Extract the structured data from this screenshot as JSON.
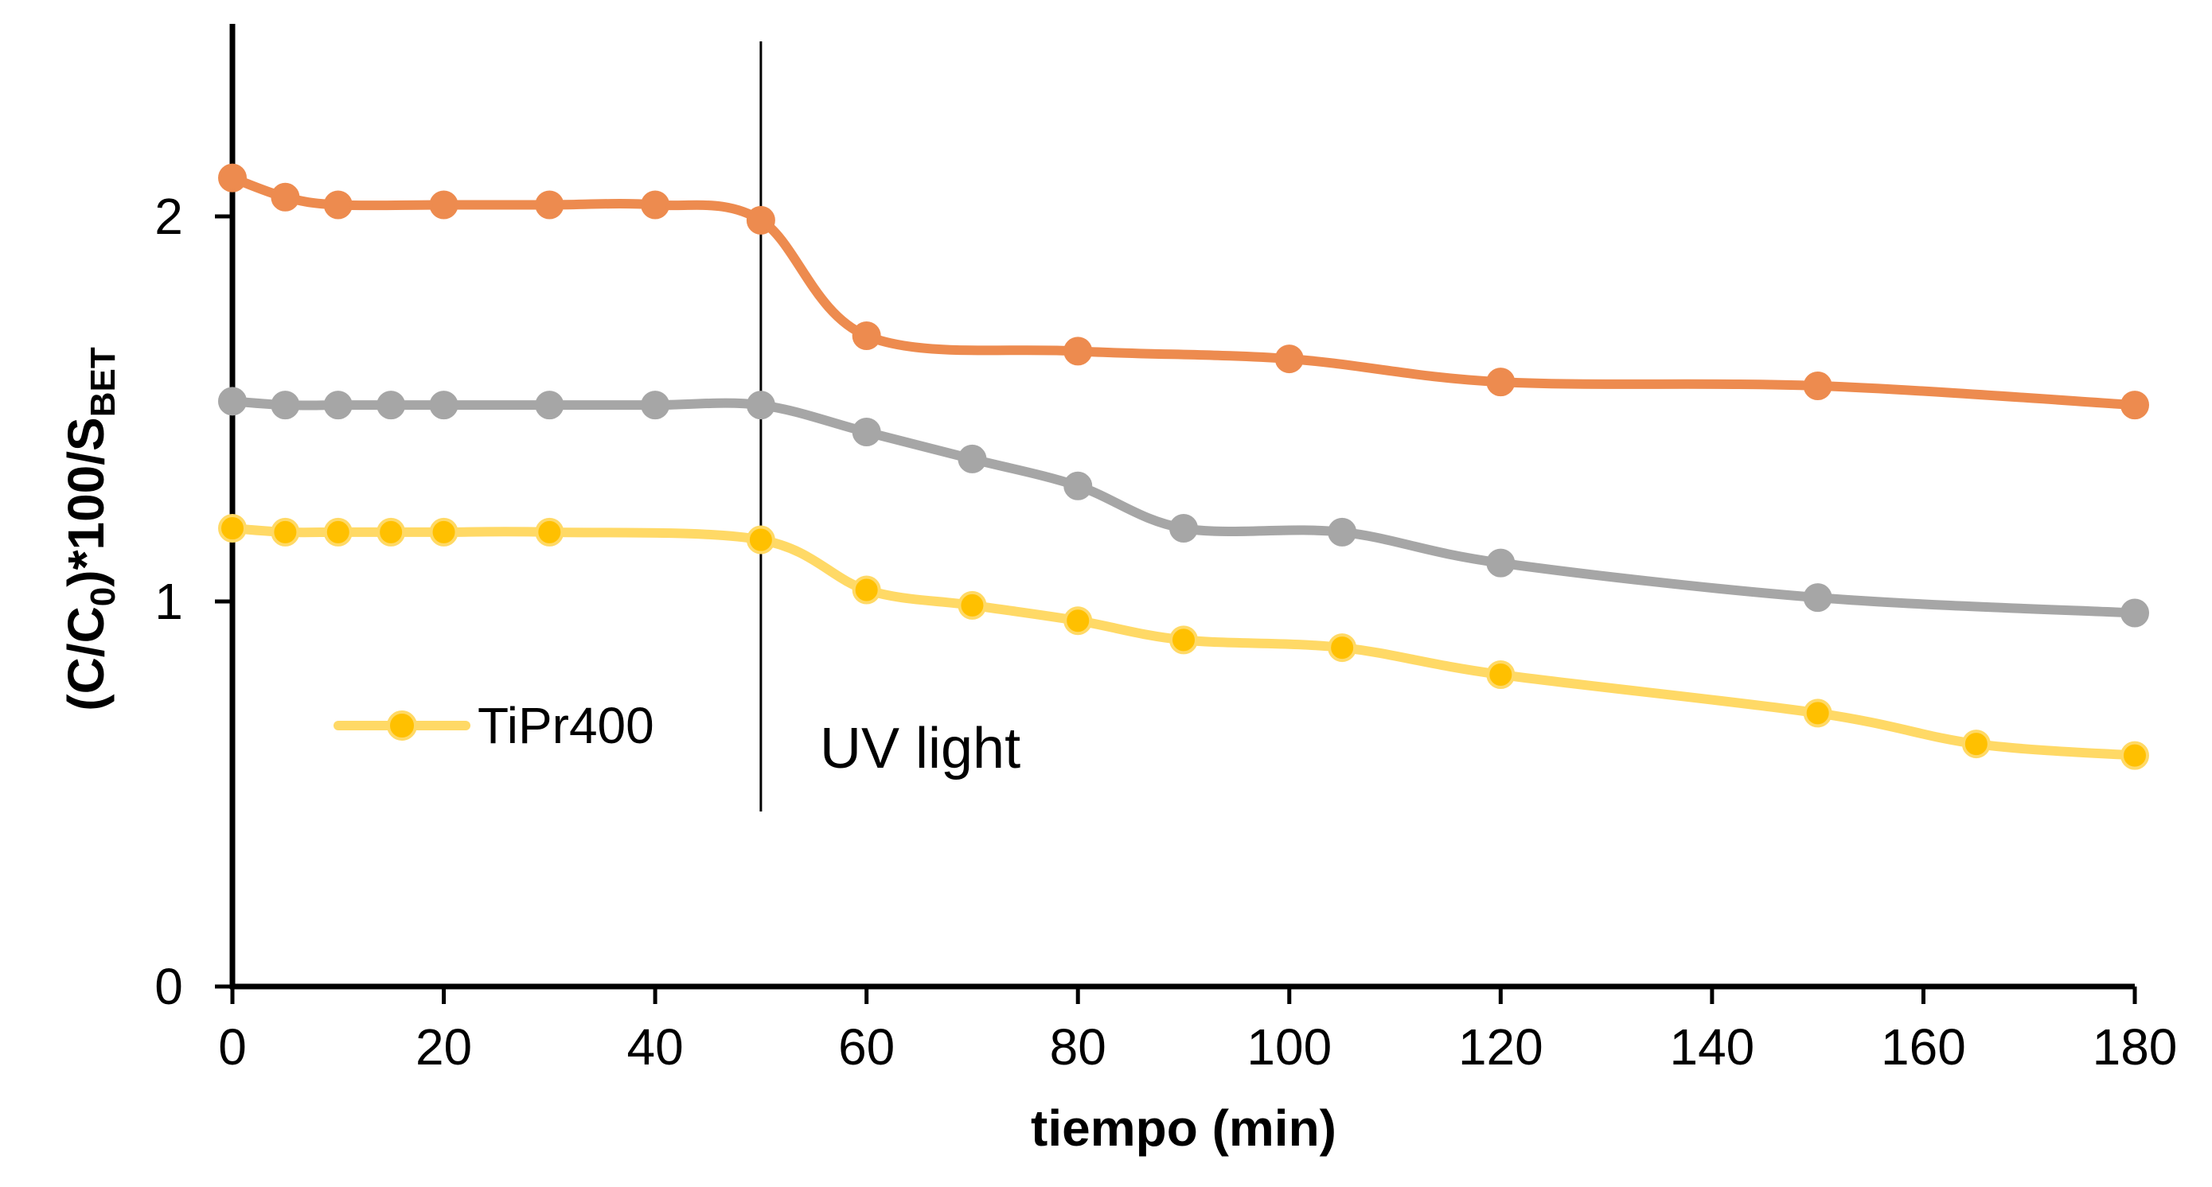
{
  "chart_data": {
    "type": "line",
    "title": "",
    "xlabel": "tiempo (min)",
    "ylabel": {
      "prefix": "(C/C",
      "sub0": "0",
      "middle": ")*100/S",
      "sub1": "BET"
    },
    "xlim": [
      0,
      180
    ],
    "ylim": [
      0,
      2.5
    ],
    "xticks": [
      "0",
      "20",
      "40",
      "60",
      "80",
      "100",
      "120",
      "140",
      "160",
      "180"
    ],
    "xtick_values": [
      0,
      20,
      40,
      60,
      80,
      100,
      120,
      140,
      160,
      180
    ],
    "yticks": [
      "0",
      "1",
      "2"
    ],
    "ytick_values": [
      0,
      1,
      2
    ],
    "grid": false,
    "legend_placement": "lower-left",
    "annotation": {
      "text": "UV light",
      "x": 50
    },
    "series": [
      {
        "name": "",
        "color": "#ED8B4F",
        "line_color": "#ED8B4F",
        "x": [
          0,
          5,
          10,
          20,
          30,
          40,
          50,
          60,
          80,
          100,
          120,
          150,
          180
        ],
        "y": [
          2.1,
          2.05,
          2.03,
          2.03,
          2.03,
          2.03,
          1.99,
          1.69,
          1.65,
          1.63,
          1.57,
          1.56,
          1.51
        ],
        "show_in_legend": false
      },
      {
        "name": "",
        "color": "#A6A6A6",
        "line_color": "#A6A6A6",
        "x": [
          0,
          5,
          10,
          15,
          20,
          30,
          40,
          50,
          60,
          70,
          80,
          90,
          105,
          120,
          150,
          180
        ],
        "y": [
          1.52,
          1.51,
          1.51,
          1.51,
          1.51,
          1.51,
          1.51,
          1.51,
          1.44,
          1.37,
          1.3,
          1.19,
          1.18,
          1.1,
          1.01,
          0.97
        ],
        "show_in_legend": false
      },
      {
        "name": "TiPr400",
        "color": "#FFC000",
        "line_color": "#FFD966",
        "x": [
          0,
          5,
          10,
          15,
          20,
          30,
          50,
          60,
          70,
          80,
          90,
          105,
          120,
          150,
          165,
          180
        ],
        "y": [
          1.19,
          1.18,
          1.18,
          1.18,
          1.18,
          1.18,
          1.16,
          1.03,
          0.99,
          0.95,
          0.9,
          0.88,
          0.81,
          0.71,
          0.63,
          0.6
        ],
        "show_in_legend": true
      }
    ]
  }
}
